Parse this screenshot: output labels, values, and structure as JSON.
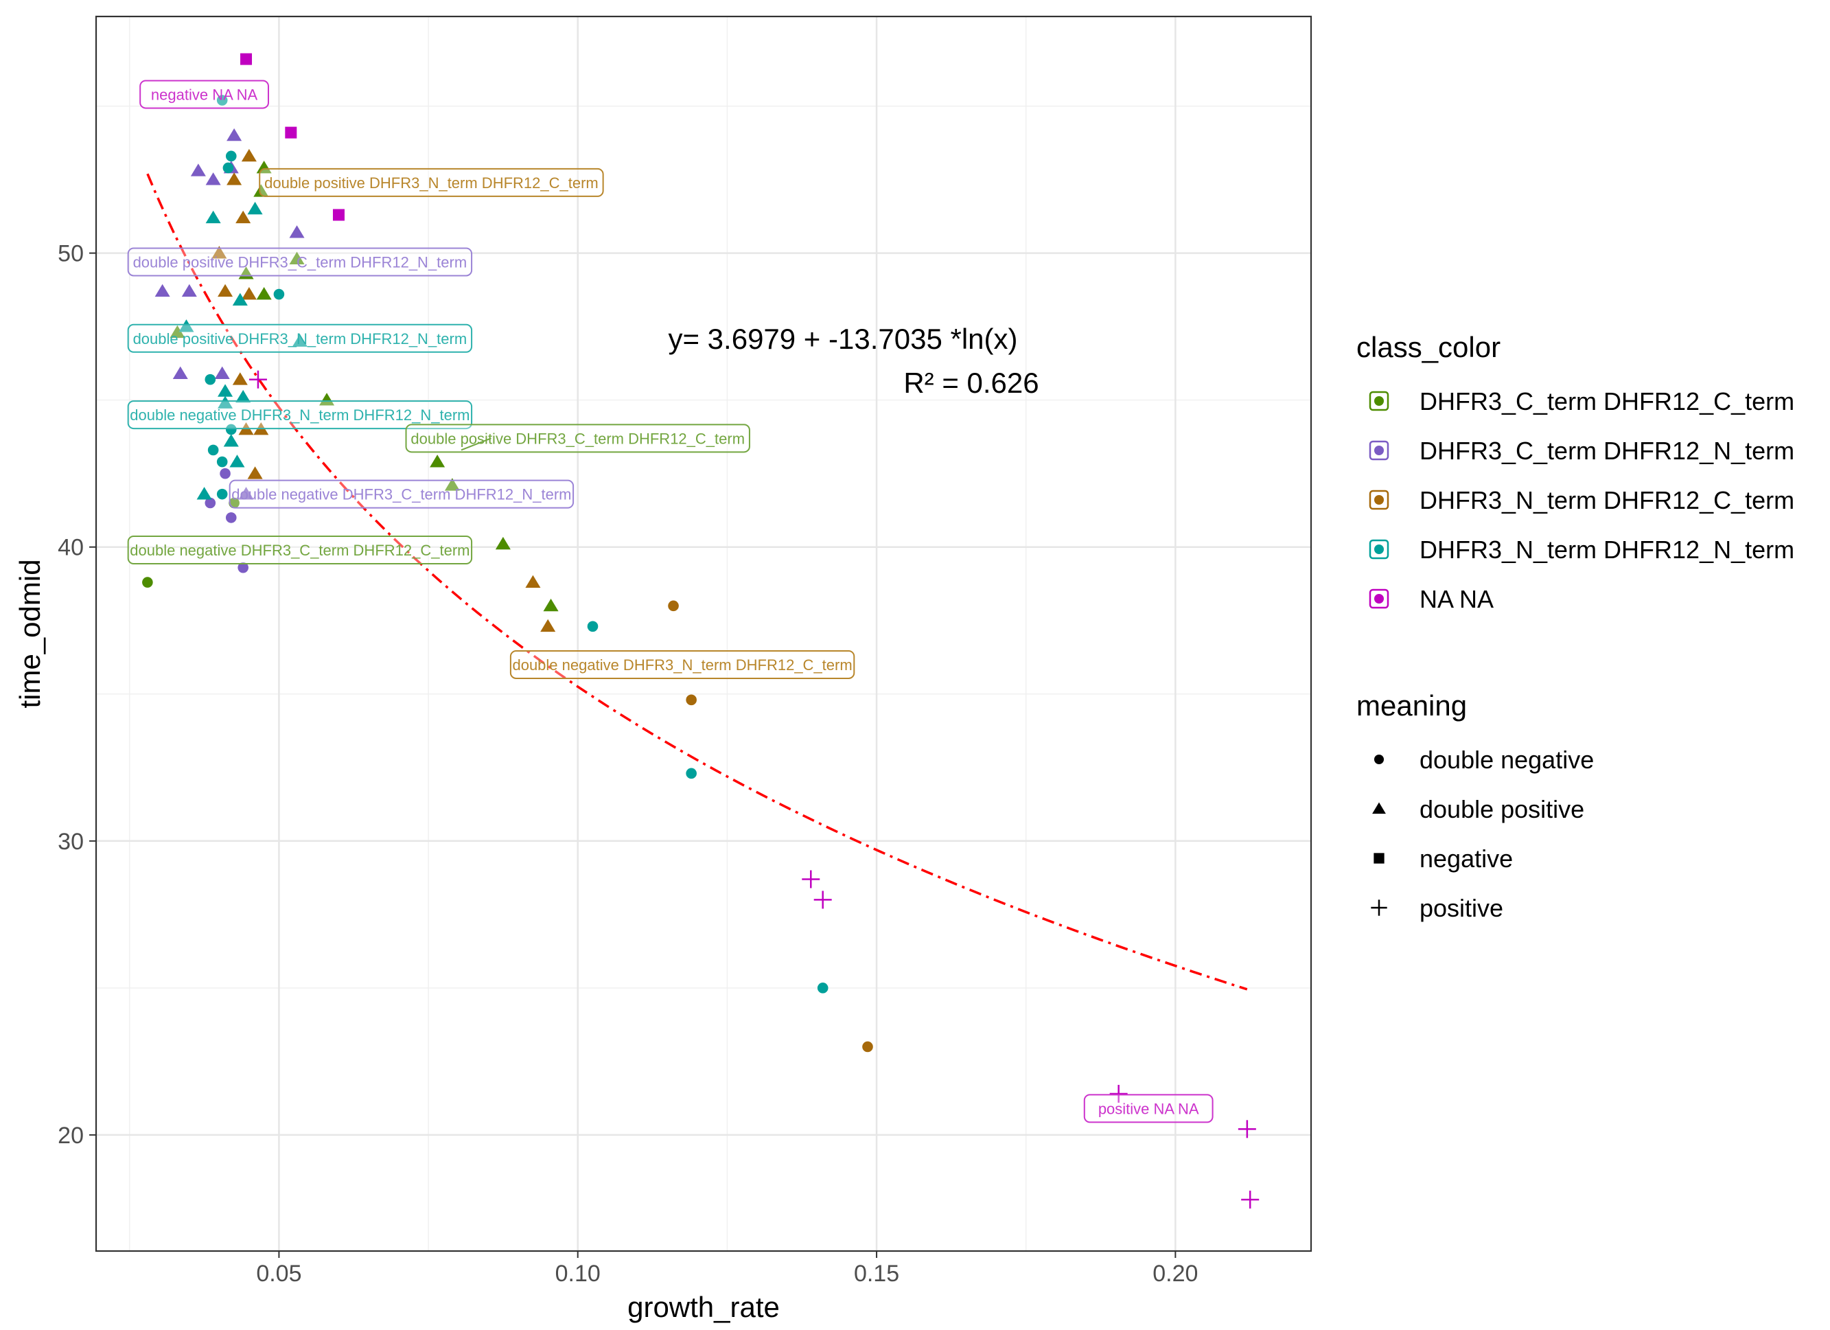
{
  "chart_data": {
    "type": "scatter",
    "xlabel": "growth_rate",
    "ylabel": "time_odmid",
    "xlim": [
      0.0194,
      0.2227
    ],
    "ylim": [
      16.05,
      58.05
    ],
    "x_ticks": [
      {
        "value": 0.05,
        "label": "0.05"
      },
      {
        "value": 0.1,
        "label": "0.10"
      },
      {
        "value": 0.15,
        "label": "0.15"
      },
      {
        "value": 0.2,
        "label": "0.20"
      }
    ],
    "y_ticks": [
      {
        "value": 20,
        "label": "20"
      },
      {
        "value": 30,
        "label": "30"
      },
      {
        "value": 40,
        "label": "40"
      },
      {
        "value": 50,
        "label": "50"
      }
    ],
    "grid": true,
    "legend_placement": "right",
    "fit": {
      "equation_text": "y= 3.6979 + -13.7035 *ln(x)",
      "r2_text": "R² = 0.626",
      "intercept": 3.6979,
      "slope": -13.7035,
      "x_range": [
        0.028,
        0.212
      ],
      "color": "#ff0000",
      "style": "dot-dash"
    },
    "legends": {
      "color": {
        "title": "class_color",
        "entries": [
          {
            "label": "DHFR3_C_term DHFR12_C_term",
            "color": "#4d8c00"
          },
          {
            "label": "DHFR3_C_term DHFR12_N_term",
            "color": "#7b5cc4"
          },
          {
            "label": "DHFR3_N_term DHFR12_C_term",
            "color": "#a6690a"
          },
          {
            "label": "DHFR3_N_term DHFR12_N_term",
            "color": "#00a09a"
          },
          {
            "label": "NA NA",
            "color": "#c000c0"
          }
        ]
      },
      "shape": {
        "title": "meaning",
        "entries": [
          {
            "label": "double negative",
            "shape": "circle"
          },
          {
            "label": "double positive",
            "shape": "triangle"
          },
          {
            "label": "negative",
            "shape": "square"
          },
          {
            "label": "positive",
            "shape": "plus"
          }
        ]
      }
    },
    "series": [
      {
        "name": "DHFR3_C_term DHFR12_C_term",
        "color": "#4d8c00",
        "points": [
          {
            "x": 0.028,
            "y": 38.8,
            "shape": "circle"
          },
          {
            "x": 0.0425,
            "y": 41.5,
            "shape": "circle"
          },
          {
            "x": 0.033,
            "y": 47.3,
            "shape": "triangle"
          },
          {
            "x": 0.0475,
            "y": 52.9,
            "shape": "triangle"
          },
          {
            "x": 0.047,
            "y": 52.1,
            "shape": "triangle"
          },
          {
            "x": 0.0445,
            "y": 49.3,
            "shape": "triangle"
          },
          {
            "x": 0.0475,
            "y": 48.6,
            "shape": "triangle"
          },
          {
            "x": 0.053,
            "y": 49.8,
            "shape": "triangle"
          },
          {
            "x": 0.058,
            "y": 45.0,
            "shape": "triangle"
          },
          {
            "x": 0.0765,
            "y": 42.9,
            "shape": "triangle"
          },
          {
            "x": 0.079,
            "y": 42.1,
            "shape": "triangle"
          },
          {
            "x": 0.0875,
            "y": 40.1,
            "shape": "triangle"
          },
          {
            "x": 0.0955,
            "y": 38.0,
            "shape": "triangle"
          }
        ]
      },
      {
        "name": "DHFR3_C_term DHFR12_N_term",
        "color": "#7b5cc4",
        "points": [
          {
            "x": 0.0385,
            "y": 41.5,
            "shape": "circle"
          },
          {
            "x": 0.042,
            "y": 41.0,
            "shape": "circle"
          },
          {
            "x": 0.044,
            "y": 39.3,
            "shape": "circle"
          },
          {
            "x": 0.041,
            "y": 42.5,
            "shape": "circle"
          },
          {
            "x": 0.0425,
            "y": 54.0,
            "shape": "triangle"
          },
          {
            "x": 0.0365,
            "y": 52.8,
            "shape": "triangle"
          },
          {
            "x": 0.039,
            "y": 52.5,
            "shape": "triangle"
          },
          {
            "x": 0.042,
            "y": 52.9,
            "shape": "triangle"
          },
          {
            "x": 0.0305,
            "y": 48.7,
            "shape": "triangle"
          },
          {
            "x": 0.035,
            "y": 48.7,
            "shape": "triangle"
          },
          {
            "x": 0.053,
            "y": 50.7,
            "shape": "triangle"
          },
          {
            "x": 0.0335,
            "y": 45.9,
            "shape": "triangle"
          },
          {
            "x": 0.0405,
            "y": 45.9,
            "shape": "triangle"
          },
          {
            "x": 0.0445,
            "y": 41.8,
            "shape": "triangle"
          }
        ]
      },
      {
        "name": "DHFR3_N_term DHFR12_C_term",
        "color": "#a6690a",
        "points": [
          {
            "x": 0.116,
            "y": 38.0,
            "shape": "circle"
          },
          {
            "x": 0.119,
            "y": 34.8,
            "shape": "circle"
          },
          {
            "x": 0.1485,
            "y": 23.0,
            "shape": "circle"
          },
          {
            "x": 0.045,
            "y": 53.3,
            "shape": "triangle"
          },
          {
            "x": 0.0425,
            "y": 52.5,
            "shape": "triangle"
          },
          {
            "x": 0.044,
            "y": 51.2,
            "shape": "triangle"
          },
          {
            "x": 0.04,
            "y": 50.0,
            "shape": "triangle"
          },
          {
            "x": 0.041,
            "y": 48.7,
            "shape": "triangle"
          },
          {
            "x": 0.045,
            "y": 48.6,
            "shape": "triangle"
          },
          {
            "x": 0.0435,
            "y": 45.7,
            "shape": "triangle"
          },
          {
            "x": 0.0445,
            "y": 44.0,
            "shape": "triangle"
          },
          {
            "x": 0.047,
            "y": 44.0,
            "shape": "triangle"
          },
          {
            "x": 0.046,
            "y": 42.5,
            "shape": "triangle"
          },
          {
            "x": 0.0925,
            "y": 38.8,
            "shape": "triangle"
          },
          {
            "x": 0.095,
            "y": 37.3,
            "shape": "triangle"
          }
        ]
      },
      {
        "name": "DHFR3_N_term DHFR12_N_term",
        "color": "#00a09a",
        "points": [
          {
            "x": 0.0405,
            "y": 55.2,
            "shape": "circle"
          },
          {
            "x": 0.042,
            "y": 53.3,
            "shape": "circle"
          },
          {
            "x": 0.0415,
            "y": 52.9,
            "shape": "circle"
          },
          {
            "x": 0.05,
            "y": 48.6,
            "shape": "circle"
          },
          {
            "x": 0.0385,
            "y": 45.7,
            "shape": "circle"
          },
          {
            "x": 0.042,
            "y": 44.0,
            "shape": "circle"
          },
          {
            "x": 0.039,
            "y": 43.3,
            "shape": "circle"
          },
          {
            "x": 0.0405,
            "y": 42.9,
            "shape": "circle"
          },
          {
            "x": 0.0405,
            "y": 41.8,
            "shape": "circle"
          },
          {
            "x": 0.1025,
            "y": 37.3,
            "shape": "circle"
          },
          {
            "x": 0.119,
            "y": 32.3,
            "shape": "circle"
          },
          {
            "x": 0.141,
            "y": 25.0,
            "shape": "circle"
          },
          {
            "x": 0.039,
            "y": 51.2,
            "shape": "triangle"
          },
          {
            "x": 0.046,
            "y": 51.5,
            "shape": "triangle"
          },
          {
            "x": 0.0345,
            "y": 47.5,
            "shape": "triangle"
          },
          {
            "x": 0.0435,
            "y": 48.4,
            "shape": "triangle"
          },
          {
            "x": 0.0535,
            "y": 47.0,
            "shape": "triangle"
          },
          {
            "x": 0.041,
            "y": 45.3,
            "shape": "triangle"
          },
          {
            "x": 0.041,
            "y": 44.9,
            "shape": "triangle"
          },
          {
            "x": 0.044,
            "y": 45.1,
            "shape": "triangle"
          },
          {
            "x": 0.042,
            "y": 43.6,
            "shape": "triangle"
          },
          {
            "x": 0.043,
            "y": 42.9,
            "shape": "triangle"
          },
          {
            "x": 0.0375,
            "y": 41.8,
            "shape": "triangle"
          }
        ]
      },
      {
        "name": "NA NA",
        "color": "#c000c0",
        "points": [
          {
            "x": 0.0445,
            "y": 56.6,
            "shape": "square"
          },
          {
            "x": 0.052,
            "y": 54.1,
            "shape": "square"
          },
          {
            "x": 0.06,
            "y": 51.3,
            "shape": "square"
          },
          {
            "x": 0.0465,
            "y": 45.7,
            "shape": "plus"
          },
          {
            "x": 0.139,
            "y": 28.7,
            "shape": "plus"
          },
          {
            "x": 0.141,
            "y": 28.0,
            "shape": "plus"
          },
          {
            "x": 0.1905,
            "y": 21.4,
            "shape": "plus"
          },
          {
            "x": 0.212,
            "y": 20.2,
            "shape": "plus"
          },
          {
            "x": 0.2125,
            "y": 17.8,
            "shape": "plus"
          }
        ]
      }
    ],
    "annotations": [
      {
        "text": "negative NA NA",
        "color": "#cc33cc",
        "x": 0.0375,
        "y": 55.4
      },
      {
        "text": "double positive DHFR3_N_term DHFR12_C_term",
        "color": "#b8862b",
        "x": 0.0755,
        "y": 52.4
      },
      {
        "text": "double positive DHFR3_C_term DHFR12_N_term",
        "color": "#9b84d6",
        "x": 0.0535,
        "y": 49.7
      },
      {
        "text": "double positive DHFR3_N_term DHFR12_N_term",
        "color": "#2eb2ad",
        "x": 0.0535,
        "y": 47.1
      },
      {
        "text": "double negative DHFR3_N_term DHFR12_N_term",
        "color": "#2eb2ad",
        "x": 0.0535,
        "y": 44.5
      },
      {
        "text": "double positive DHFR3_C_term DHFR12_C_term",
        "color": "#73a640",
        "x": 0.1,
        "y": 43.7
      },
      {
        "text": "double negative DHFR3_C_term DHFR12_N_term",
        "color": "#9b84d6",
        "x": 0.0705,
        "y": 41.8
      },
      {
        "text": "double negative DHFR3_C_term DHFR12_C_term",
        "color": "#73a640",
        "x": 0.0535,
        "y": 39.9
      },
      {
        "text": "double negative DHFR3_N_term DHFR12_C_term",
        "color": "#b8862b",
        "x": 0.1175,
        "y": 36.0
      },
      {
        "text": "positive NA NA",
        "color": "#cc33cc",
        "x": 0.1955,
        "y": 20.9
      }
    ]
  }
}
